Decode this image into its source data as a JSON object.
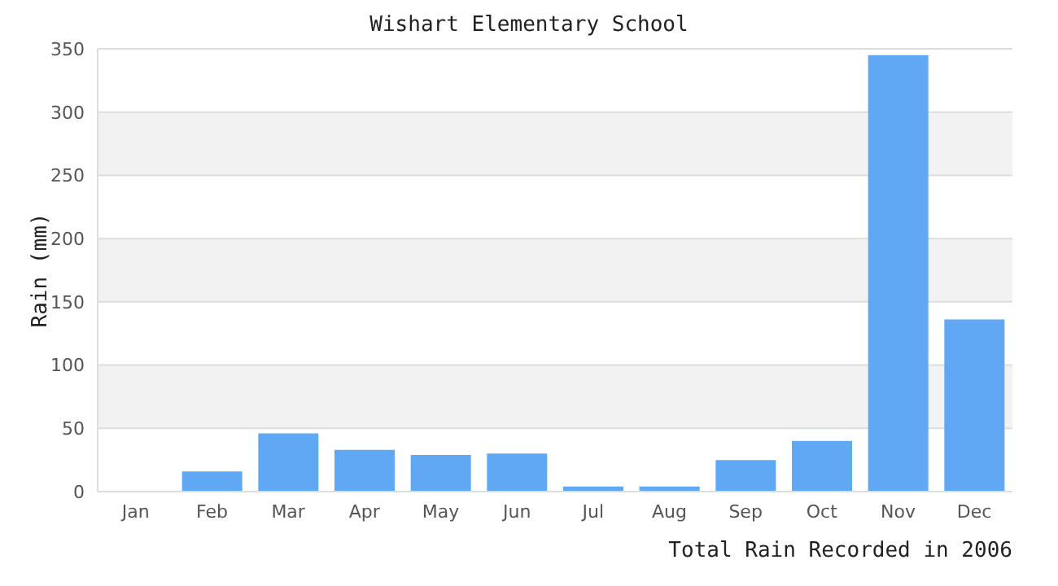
{
  "chart_data": {
    "type": "bar",
    "title": "Wishart Elementary School",
    "xlabel": "Total Rain Recorded in 2006",
    "ylabel": "Rain (mm)",
    "categories": [
      "Jan",
      "Feb",
      "Mar",
      "Apr",
      "May",
      "Jun",
      "Jul",
      "Aug",
      "Sep",
      "Oct",
      "Nov",
      "Dec"
    ],
    "values": [
      0,
      16,
      46,
      33,
      29,
      30,
      4,
      4,
      25,
      40,
      345,
      136
    ],
    "color": "#60a8f4",
    "ylim": [
      0,
      350
    ],
    "yticks": [
      0,
      50,
      100,
      150,
      200,
      250,
      300,
      350
    ],
    "grid": "y"
  }
}
